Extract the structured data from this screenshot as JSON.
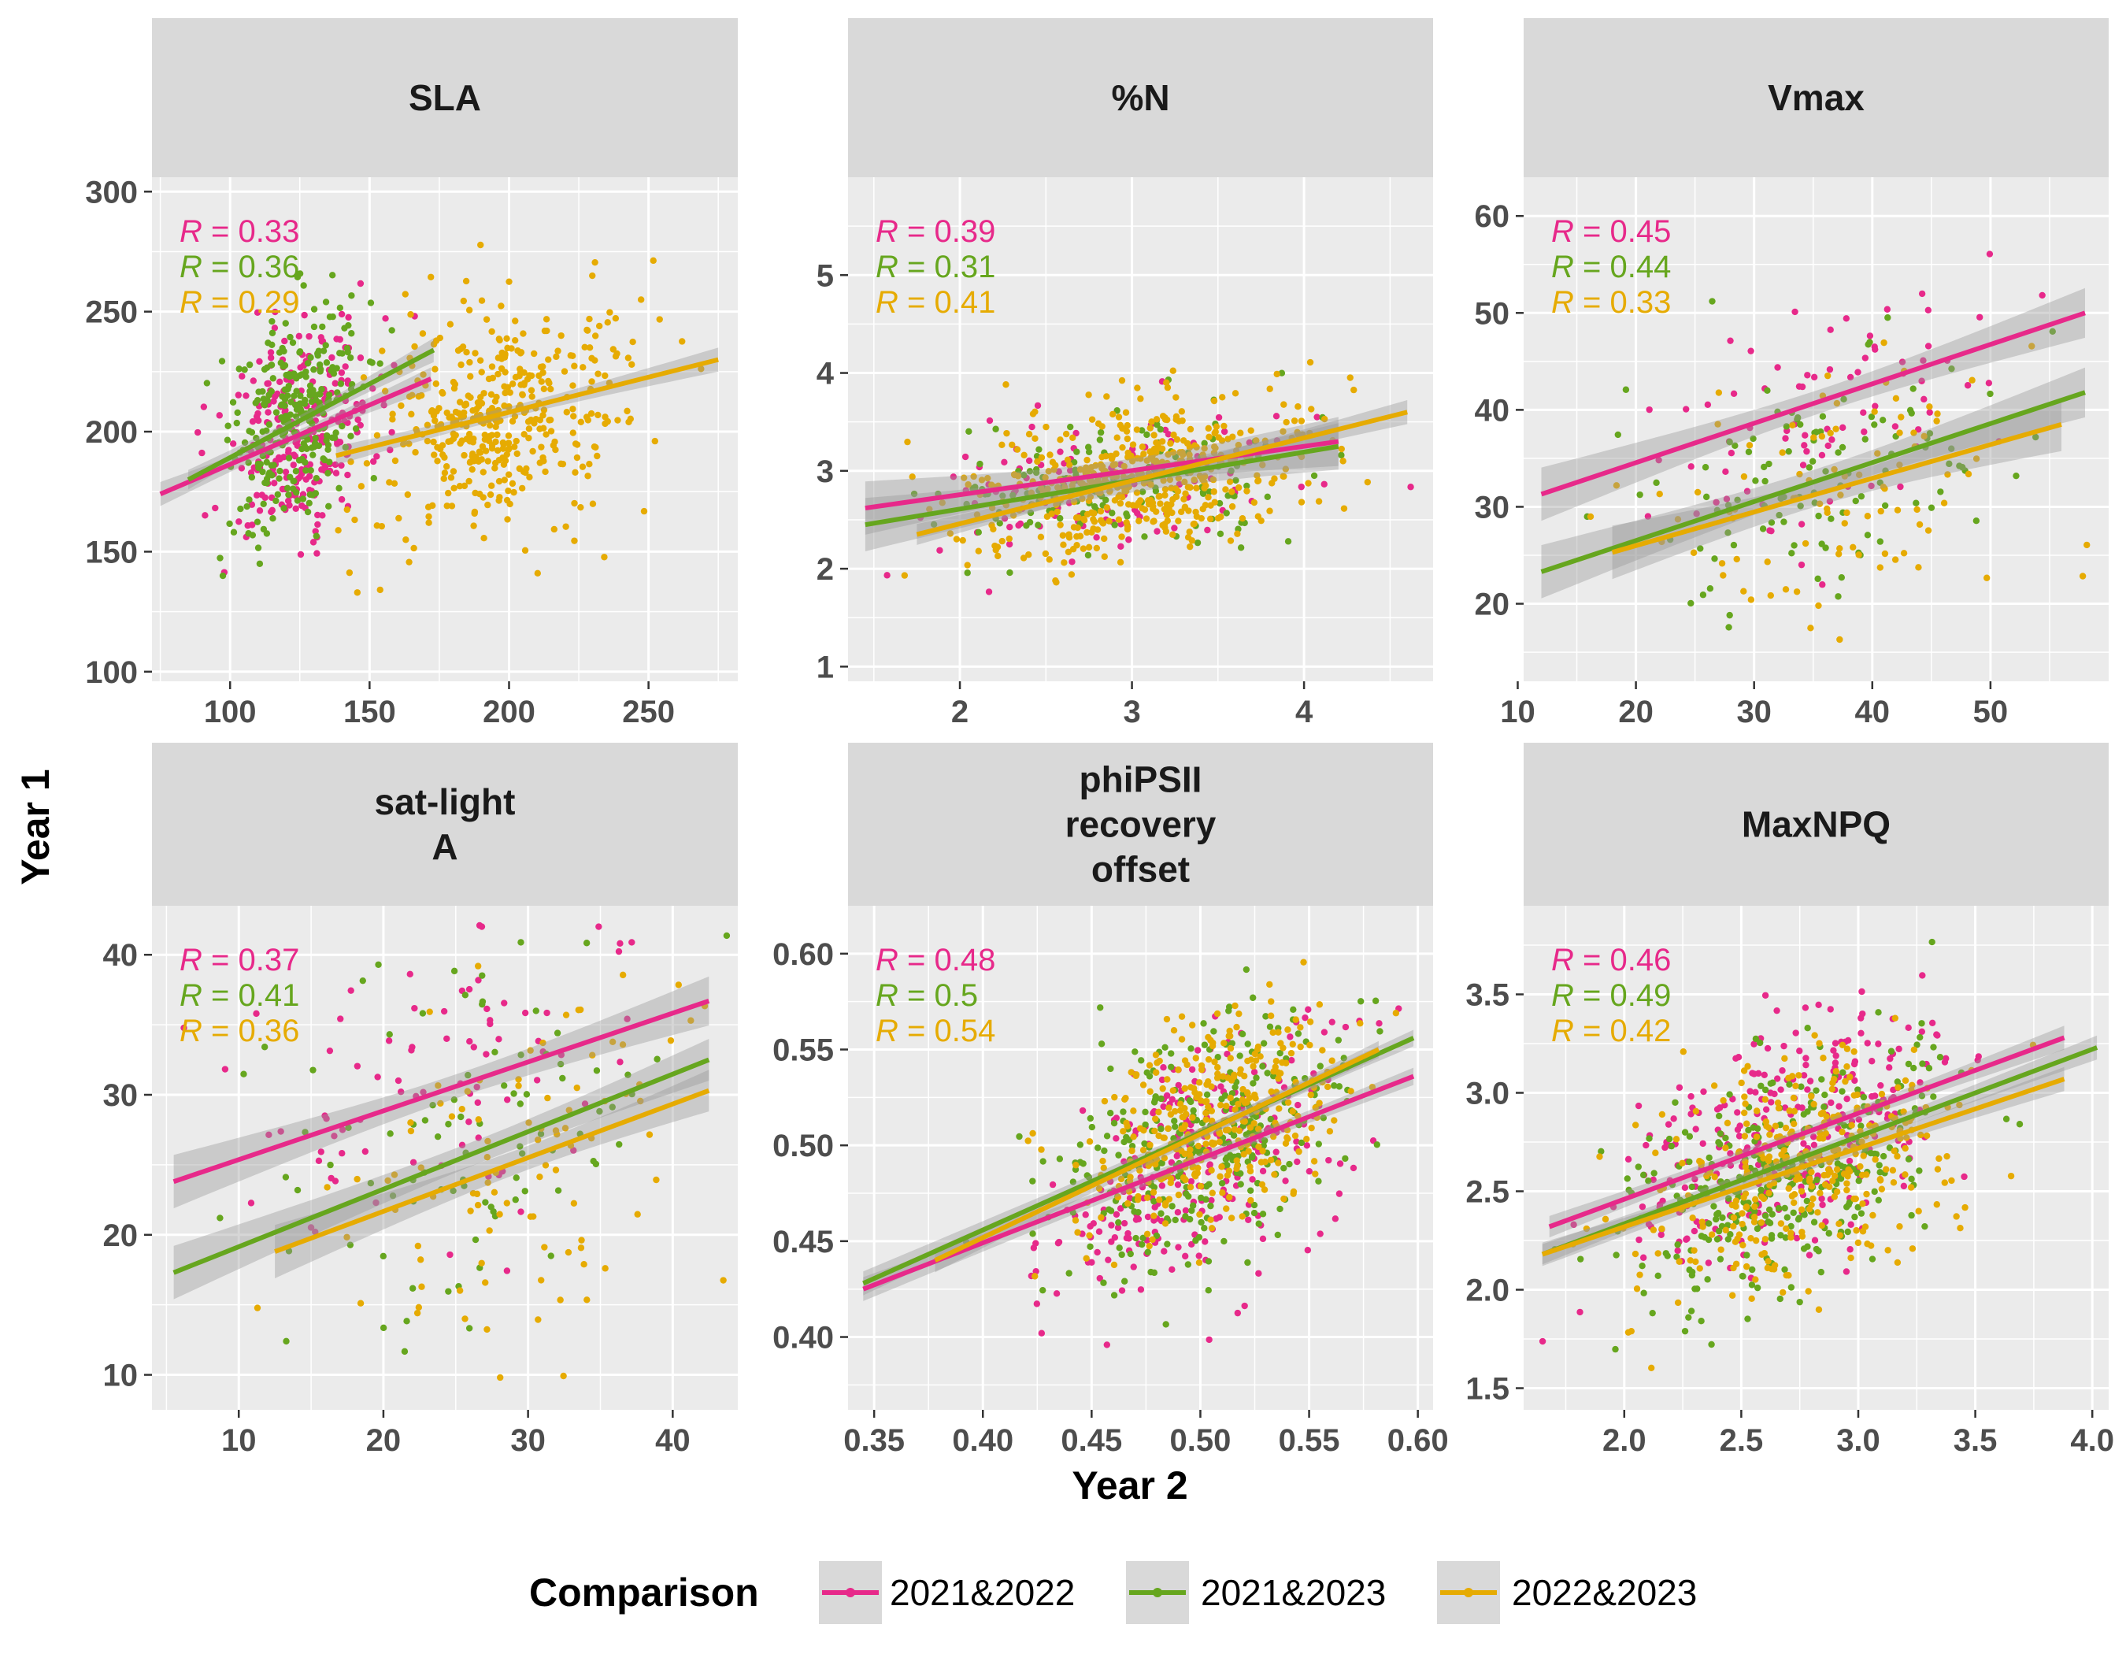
{
  "axis_titles": {
    "x": "Year 2",
    "y": "Year 1"
  },
  "legend": {
    "title": "Comparison",
    "items": [
      {
        "label": "2021&2022",
        "color": "#E7298A"
      },
      {
        "label": "2021&2023",
        "color": "#66A61E"
      },
      {
        "label": "2022&2023",
        "color": "#E6AB02"
      }
    ]
  },
  "chart_data": [
    {
      "type": "scatter",
      "title": "SLA",
      "xlim": [
        72,
        282
      ],
      "ylim": [
        96,
        306
      ],
      "xticks": [
        100,
        150,
        200,
        250
      ],
      "yticks": [
        100,
        150,
        200,
        250,
        300
      ],
      "grid": true,
      "series": [
        {
          "name": "2021&2022",
          "r_label": "R = 0.33",
          "fit": {
            "x": [
              75,
              172
            ],
            "y": [
              174,
              222
            ]
          },
          "cloud": {
            "cx": 125,
            "cy": 200,
            "sx": 14,
            "sy": 22,
            "rho": 0.33,
            "n": 260
          }
        },
        {
          "name": "2021&2023",
          "r_label": "R = 0.36",
          "fit": {
            "x": [
              85,
              173
            ],
            "y": [
              180,
              234
            ]
          },
          "cloud": {
            "cx": 123,
            "cy": 205,
            "sx": 12,
            "sy": 24,
            "rho": 0.36,
            "n": 280
          }
        },
        {
          "name": "2022&2023",
          "r_label": "R = 0.29",
          "fit": {
            "x": [
              138,
              275
            ],
            "y": [
              190,
              230
            ]
          },
          "cloud": {
            "cx": 195,
            "cy": 205,
            "sx": 23,
            "sy": 25,
            "rho": 0.29,
            "n": 420
          }
        }
      ]
    },
    {
      "type": "scatter",
      "title": "%N",
      "xlim": [
        1.35,
        4.75
      ],
      "ylim": [
        0.85,
        6.0
      ],
      "xticks": [
        2,
        3,
        4
      ],
      "yticks": [
        1,
        2,
        3,
        4,
        5
      ],
      "grid": true,
      "series": [
        {
          "name": "2021&2022",
          "r_label": "R = 0.39",
          "fit": {
            "x": [
              1.45,
              4.2
            ],
            "y": [
              2.62,
              3.3
            ]
          },
          "cloud": {
            "cx": 2.9,
            "cy": 2.85,
            "sx": 0.55,
            "sy": 0.38,
            "rho": 0.39,
            "n": 110
          }
        },
        {
          "name": "2021&2023",
          "r_label": "R = 0.31",
          "fit": {
            "x": [
              1.45,
              4.2
            ],
            "y": [
              2.45,
              3.25
            ]
          },
          "cloud": {
            "cx": 2.95,
            "cy": 2.85,
            "sx": 0.55,
            "sy": 0.38,
            "rho": 0.31,
            "n": 150
          }
        },
        {
          "name": "2022&2023",
          "r_label": "R = 0.41",
          "fit": {
            "x": [
              1.75,
              4.6
            ],
            "y": [
              2.35,
              3.6
            ]
          },
          "cloud": {
            "cx": 3.05,
            "cy": 2.9,
            "sx": 0.5,
            "sy": 0.42,
            "rho": 0.41,
            "n": 480
          }
        }
      ]
    },
    {
      "type": "scatter",
      "title": "Vmax",
      "xlim": [
        10.5,
        60.0
      ],
      "ylim": [
        12,
        64
      ],
      "xticks": [
        10,
        20,
        30,
        40,
        50
      ],
      "yticks": [
        20,
        30,
        40,
        50,
        60
      ],
      "grid": true,
      "series": [
        {
          "name": "2021&2022",
          "r_label": "R = 0.45",
          "fit": {
            "x": [
              12,
              58
            ],
            "y": [
              31.3,
              50
            ]
          },
          "cloud": {
            "cx": 36,
            "cy": 40,
            "sx": 8,
            "sy": 7,
            "rho": 0.45,
            "n": 80
          }
        },
        {
          "name": "2021&2023",
          "r_label": "R = 0.44",
          "fit": {
            "x": [
              12,
              58
            ],
            "y": [
              23.3,
              41.8
            ]
          },
          "cloud": {
            "cx": 36,
            "cy": 33,
            "sx": 8,
            "sy": 7,
            "rho": 0.44,
            "n": 110
          }
        },
        {
          "name": "2022&2023",
          "r_label": "R = 0.33",
          "fit": {
            "x": [
              18,
              56
            ],
            "y": [
              25.3,
              38.5
            ]
          },
          "cloud": {
            "cx": 37,
            "cy": 31,
            "sx": 8,
            "sy": 8,
            "rho": 0.33,
            "n": 90
          }
        }
      ]
    },
    {
      "type": "scatter",
      "title": "sat-light\nA",
      "xlim": [
        4.0,
        44.5
      ],
      "ylim": [
        7.5,
        43.5
      ],
      "xticks": [
        10,
        20,
        30,
        40
      ],
      "yticks": [
        10,
        20,
        30,
        40
      ],
      "grid": true,
      "series": [
        {
          "name": "2021&2022",
          "r_label": "R = 0.37",
          "fit": {
            "x": [
              5.5,
              42.5
            ],
            "y": [
              23.8,
              36.7
            ]
          },
          "cloud": {
            "cx": 25,
            "cy": 31,
            "sx": 7,
            "sy": 6,
            "rho": 0.37,
            "n": 80
          }
        },
        {
          "name": "2021&2023",
          "r_label": "R = 0.41",
          "fit": {
            "x": [
              5.5,
              42.5
            ],
            "y": [
              17.3,
              32.5
            ]
          },
          "cloud": {
            "cx": 27,
            "cy": 26,
            "sx": 8,
            "sy": 7,
            "rho": 0.41,
            "n": 90
          }
        },
        {
          "name": "2022&2023",
          "r_label": "R = 0.36",
          "fit": {
            "x": [
              12.5,
              42.5
            ],
            "y": [
              18.8,
              30.3
            ]
          },
          "cloud": {
            "cx": 30,
            "cy": 25,
            "sx": 7,
            "sy": 7,
            "rho": 0.36,
            "n": 100
          }
        }
      ]
    },
    {
      "type": "scatter",
      "title": "phiPSII\nrecovery\noffset",
      "xlim": [
        0.338,
        0.607
      ],
      "ylim": [
        0.362,
        0.625
      ],
      "xticks": [
        0.35,
        0.4,
        0.45,
        0.5,
        0.55,
        0.6
      ],
      "yticks": [
        0.4,
        0.45,
        0.5,
        0.55,
        0.6
      ],
      "xtick_labels": [
        "0.35",
        "0.40",
        "0.45",
        "0.50",
        "0.55",
        "0.60"
      ],
      "ytick_labels": [
        "0.40",
        "0.45",
        "0.50",
        "0.55",
        "0.60"
      ],
      "grid": true,
      "series": [
        {
          "name": "2021&2022",
          "r_label": "R = 0.48",
          "fit": {
            "x": [
              0.345,
              0.598
            ],
            "y": [
              0.425,
              0.536
            ]
          },
          "cloud": {
            "cx": 0.5,
            "cy": 0.49,
            "sx": 0.033,
            "sy": 0.035,
            "rho": 0.48,
            "n": 260
          }
        },
        {
          "name": "2021&2023",
          "r_label": "R = 0.5",
          "fit": {
            "x": [
              0.345,
              0.598
            ],
            "y": [
              0.428,
              0.556
            ]
          },
          "cloud": {
            "cx": 0.505,
            "cy": 0.505,
            "sx": 0.033,
            "sy": 0.033,
            "rho": 0.5,
            "n": 320
          }
        },
        {
          "name": "2022&2023",
          "r_label": "R = 0.54",
          "fit": {
            "x": [
              0.378,
              0.582
            ],
            "y": [
              0.44,
              0.55
            ]
          },
          "cloud": {
            "cx": 0.505,
            "cy": 0.51,
            "sx": 0.03,
            "sy": 0.03,
            "rho": 0.54,
            "n": 340
          }
        }
      ]
    },
    {
      "type": "scatter",
      "title": "MaxNPQ",
      "xlim": [
        1.57,
        4.07
      ],
      "ylim": [
        1.39,
        3.95
      ],
      "xticks": [
        2.0,
        2.5,
        3.0,
        3.5,
        4.0
      ],
      "yticks": [
        1.5,
        2.0,
        2.5,
        3.0,
        3.5
      ],
      "xtick_labels": [
        "2.0",
        "2.5",
        "3.0",
        "3.5",
        "4.0"
      ],
      "ytick_labels": [
        "1.5",
        "2.0",
        "2.5",
        "3.0",
        "3.5"
      ],
      "grid": true,
      "series": [
        {
          "name": "2021&2022",
          "r_label": "R = 0.46",
          "fit": {
            "x": [
              1.68,
              3.88
            ],
            "y": [
              2.32,
              3.28
            ]
          },
          "cloud": {
            "cx": 2.7,
            "cy": 2.75,
            "sx": 0.35,
            "sy": 0.35,
            "rho": 0.46,
            "n": 300
          }
        },
        {
          "name": "2021&2023",
          "r_label": "R = 0.49",
          "fit": {
            "x": [
              1.65,
              4.02
            ],
            "y": [
              2.18,
              3.23
            ]
          },
          "cloud": {
            "cx": 2.7,
            "cy": 2.6,
            "sx": 0.37,
            "sy": 0.33,
            "rho": 0.49,
            "n": 320
          }
        },
        {
          "name": "2022&2023",
          "r_label": "R = 0.42",
          "fit": {
            "x": [
              1.65,
              3.88
            ],
            "y": [
              2.18,
              3.07
            ]
          },
          "cloud": {
            "cx": 2.75,
            "cy": 2.6,
            "sx": 0.33,
            "sy": 0.3,
            "rho": 0.42,
            "n": 330
          }
        }
      ]
    }
  ]
}
